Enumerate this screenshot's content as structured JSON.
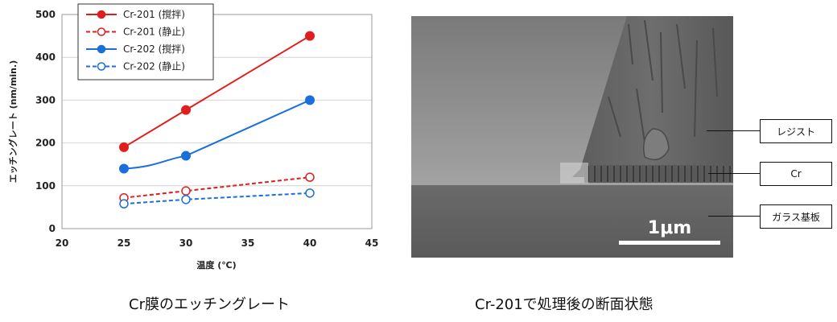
{
  "chart_data": {
    "type": "line",
    "xlabel": "温度 (℃)",
    "ylabel": "エッチングレート (nm/min.)",
    "xlim": [
      20,
      45
    ],
    "ylim": [
      0,
      500
    ],
    "xticks": [
      20,
      25,
      30,
      35,
      40,
      45
    ],
    "yticks": [
      0,
      100,
      200,
      300,
      400,
      500
    ],
    "grid": true,
    "legend_position": "top-left",
    "series": [
      {
        "name": "Cr-201 (撹拌)",
        "x": [
          25,
          30,
          40
        ],
        "y": [
          190,
          277,
          450
        ],
        "color": "#e01e1e",
        "style": "solid",
        "marker": "filled"
      },
      {
        "name": "Cr-201 (静止)",
        "x": [
          25,
          30,
          40
        ],
        "y": [
          72,
          88,
          120
        ],
        "color": "#e01e1e",
        "style": "dashed",
        "marker": "open"
      },
      {
        "name": "Cr-202 (撹拌)",
        "x": [
          25,
          30,
          40
        ],
        "y": [
          140,
          170,
          300
        ],
        "color": "#1a6fdb",
        "style": "solid",
        "marker": "filled"
      },
      {
        "name": "Cr-202 (静止)",
        "x": [
          25,
          30,
          40
        ],
        "y": [
          58,
          68,
          83
        ],
        "color": "#1a6fdb",
        "style": "dashed",
        "marker": "open"
      }
    ]
  },
  "captions": {
    "left": "Cr膜のエッチングレート",
    "right": "Cr-201で処理後の断面状態"
  },
  "sem": {
    "scale_label": "1μm",
    "callouts": {
      "resist": "レジスト",
      "cr": "Cr",
      "glass": "ガラス基板"
    }
  }
}
